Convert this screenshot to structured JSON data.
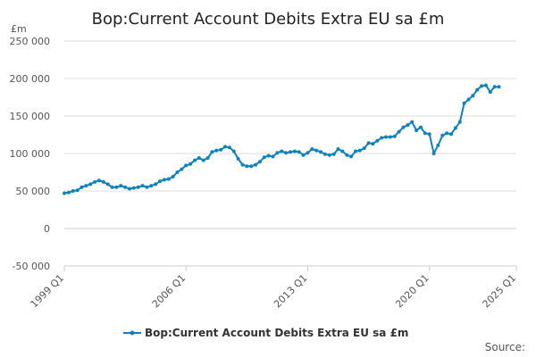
{
  "chart_data": {
    "type": "line",
    "title": "Bop:Current Account Debits Extra EU sa £m",
    "ylabel": "£m",
    "xlabel": "",
    "ylim": [
      -50000,
      250000
    ],
    "yticks": [
      -50000,
      0,
      50000,
      100000,
      150000,
      200000,
      250000
    ],
    "ytick_labels": [
      "-50 000",
      "0",
      "50 000",
      "100 000",
      "150 000",
      "200 000",
      "250 000"
    ],
    "xlim": [
      "1999 Q1",
      "2025 Q1"
    ],
    "xticks": [
      "1999 Q1",
      "2006 Q1",
      "2013 Q1",
      "2020 Q1",
      "2025 Q1"
    ],
    "legend_position": "bottom",
    "grid": "horizontal",
    "colors": {
      "series": "#0f82be",
      "grid": "#dddddd",
      "baseline": "#cccccc"
    },
    "series": [
      {
        "name": "Bop:Current Account Debits Extra EU sa £m",
        "x": [
          "1999 Q1",
          "1999 Q2",
          "1999 Q3",
          "1999 Q4",
          "2000 Q1",
          "2000 Q2",
          "2000 Q3",
          "2000 Q4",
          "2001 Q1",
          "2001 Q2",
          "2001 Q3",
          "2001 Q4",
          "2002 Q1",
          "2002 Q2",
          "2002 Q3",
          "2002 Q4",
          "2003 Q1",
          "2003 Q2",
          "2003 Q3",
          "2003 Q4",
          "2004 Q1",
          "2004 Q2",
          "2004 Q3",
          "2004 Q4",
          "2005 Q1",
          "2005 Q2",
          "2005 Q3",
          "2005 Q4",
          "2006 Q1",
          "2006 Q2",
          "2006 Q3",
          "2006 Q4",
          "2007 Q1",
          "2007 Q2",
          "2007 Q3",
          "2007 Q4",
          "2008 Q1",
          "2008 Q2",
          "2008 Q3",
          "2008 Q4",
          "2009 Q1",
          "2009 Q2",
          "2009 Q3",
          "2009 Q4",
          "2010 Q1",
          "2010 Q2",
          "2010 Q3",
          "2010 Q4",
          "2011 Q1",
          "2011 Q2",
          "2011 Q3",
          "2011 Q4",
          "2012 Q1",
          "2012 Q2",
          "2012 Q3",
          "2012 Q4",
          "2013 Q1",
          "2013 Q2",
          "2013 Q3",
          "2013 Q4",
          "2014 Q1",
          "2014 Q2",
          "2014 Q3",
          "2014 Q4",
          "2015 Q1",
          "2015 Q2",
          "2015 Q3",
          "2015 Q4",
          "2016 Q1",
          "2016 Q2",
          "2016 Q3",
          "2016 Q4",
          "2017 Q1",
          "2017 Q2",
          "2017 Q3",
          "2017 Q4",
          "2018 Q1",
          "2018 Q2",
          "2018 Q3",
          "2018 Q4",
          "2019 Q1",
          "2019 Q2",
          "2019 Q3",
          "2019 Q4",
          "2020 Q1",
          "2020 Q2",
          "2020 Q3",
          "2020 Q4",
          "2021 Q1",
          "2021 Q2",
          "2021 Q3",
          "2021 Q4",
          "2022 Q1",
          "2022 Q2",
          "2022 Q3",
          "2022 Q4",
          "2023 Q1",
          "2023 Q2",
          "2023 Q3",
          "2023 Q4",
          "2024 Q1"
        ],
        "values": [
          47000,
          48000,
          50000,
          51000,
          55000,
          57000,
          59000,
          62000,
          64000,
          62000,
          59000,
          55000,
          55000,
          57000,
          55000,
          53000,
          54000,
          55000,
          57000,
          55000,
          57000,
          59000,
          63000,
          65000,
          66000,
          69000,
          75000,
          79000,
          84000,
          86000,
          91000,
          94000,
          91000,
          94000,
          102000,
          104000,
          105000,
          109000,
          108000,
          103000,
          93000,
          85000,
          83000,
          83000,
          85000,
          89000,
          95000,
          97000,
          96000,
          101000,
          103000,
          101000,
          102000,
          103000,
          102000,
          98000,
          101000,
          106000,
          104000,
          102000,
          99000,
          98000,
          99000,
          106000,
          103000,
          98000,
          96000,
          103000,
          104000,
          107000,
          114000,
          113000,
          117000,
          121000,
          122000,
          122000,
          123000,
          129000,
          135000,
          138000,
          142000,
          131000,
          135000,
          127000,
          126000,
          100000,
          111000,
          124000,
          127000,
          126000,
          134000,
          142000,
          167000,
          172000,
          177000,
          185000,
          190000,
          191000,
          182000,
          189000,
          189000
        ]
      }
    ],
    "legend": "Bop:Current Account Debits Extra EU sa £m",
    "source_label": "Source:"
  }
}
